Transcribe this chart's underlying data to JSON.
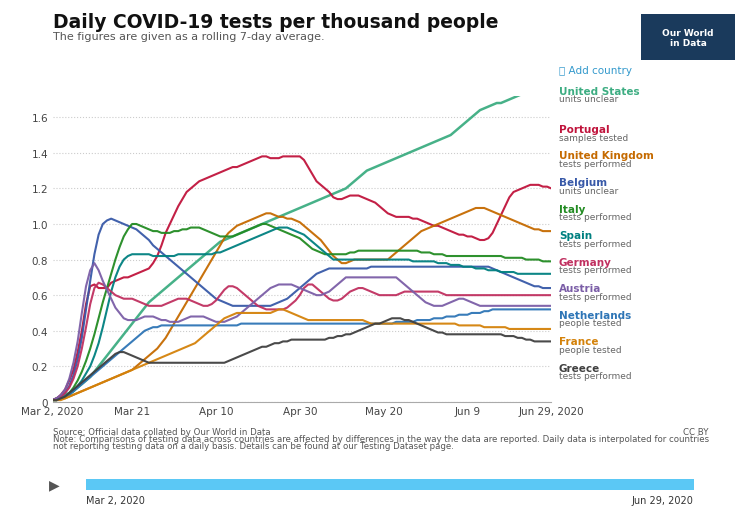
{
  "title": "Daily COVID-19 tests per thousand people",
  "subtitle": "The figures are given as a rolling 7-day average.",
  "owid_box_color": "#1a3a5c",
  "background_color": "#ffffff",
  "source_text1": "Source: Official data collated by Our World in Data",
  "source_text2": "Note: Comparisons of testing data across countries are affected by differences in the way the data are reported. Daily data is interpolated for countries",
  "source_text3": "not reporting testing data on a daily basis. Details can be found at our Testing Dataset page.",
  "cc_text": "CC BY",
  "slider_left": "Mar 2, 2020",
  "slider_right": "Jun 29, 2020",
  "add_country_text": "➕ Add country",
  "xtick_labels": [
    "Mar 2, 2020",
    "Mar 21",
    "Apr 10",
    "Apr 30",
    "May 20",
    "Jun 9",
    "Jun 29, 2020"
  ],
  "xtick_days": [
    0,
    19,
    39,
    59,
    79,
    99,
    119
  ],
  "yticks": [
    0,
    0.2,
    0.4,
    0.6,
    0.8,
    1.0,
    1.2,
    1.4,
    1.6
  ],
  "ylim": [
    0,
    1.72
  ],
  "countries": [
    {
      "name": "United States",
      "note": "units unclear",
      "color": "#3dad82",
      "lw": 1.8
    },
    {
      "name": "Portugal",
      "note": "samples tested",
      "color": "#c0143c",
      "lw": 1.5
    },
    {
      "name": "United Kingdom",
      "note": "tests performed",
      "color": "#c56a00",
      "lw": 1.5
    },
    {
      "name": "Belgium",
      "note": "units unclear",
      "color": "#3859a8",
      "lw": 1.5
    },
    {
      "name": "Italy",
      "note": "tests performed",
      "color": "#228b22",
      "lw": 1.5
    },
    {
      "name": "Spain",
      "note": "tests performed",
      "color": "#008080",
      "lw": 1.5
    },
    {
      "name": "Germany",
      "note": "tests performed",
      "color": "#c03060",
      "lw": 1.5
    },
    {
      "name": "Austria",
      "note": "tests performed",
      "color": "#7b5ea7",
      "lw": 1.5
    },
    {
      "name": "Netherlands",
      "note": "people tested",
      "color": "#2e75b6",
      "lw": 1.5
    },
    {
      "name": "France",
      "note": "people tested",
      "color": "#d4820a",
      "lw": 1.5
    },
    {
      "name": "Greece",
      "note": "tests performed",
      "color": "#404040",
      "lw": 1.5
    }
  ],
  "series": {
    "United States": [
      0.01,
      0.02,
      0.03,
      0.04,
      0.05,
      0.06,
      0.08,
      0.1,
      0.12,
      0.14,
      0.17,
      0.2,
      0.23,
      0.26,
      0.29,
      0.32,
      0.35,
      0.38,
      0.41,
      0.44,
      0.47,
      0.5,
      0.53,
      0.56,
      0.58,
      0.6,
      0.62,
      0.64,
      0.66,
      0.68,
      0.7,
      0.72,
      0.74,
      0.76,
      0.78,
      0.8,
      0.82,
      0.84,
      0.86,
      0.88,
      0.9,
      0.91,
      0.92,
      0.93,
      0.94,
      0.95,
      0.96,
      0.97,
      0.98,
      0.99,
      1.0,
      1.01,
      1.02,
      1.03,
      1.04,
      1.05,
      1.06,
      1.07,
      1.08,
      1.09,
      1.1,
      1.11,
      1.12,
      1.13,
      1.14,
      1.15,
      1.16,
      1.17,
      1.18,
      1.19,
      1.2,
      1.22,
      1.24,
      1.26,
      1.28,
      1.3,
      1.31,
      1.32,
      1.33,
      1.34,
      1.35,
      1.36,
      1.37,
      1.38,
      1.39,
      1.4,
      1.41,
      1.42,
      1.43,
      1.44,
      1.45,
      1.46,
      1.47,
      1.48,
      1.49,
      1.5,
      1.52,
      1.54,
      1.56,
      1.58,
      1.6,
      1.62,
      1.64,
      1.65,
      1.66,
      1.67,
      1.68,
      1.68,
      1.69,
      1.7,
      1.71,
      1.72,
      1.73,
      1.74,
      1.75,
      1.76,
      1.77,
      1.78,
      1.79,
      1.8
    ],
    "Portugal": [
      0.01,
      0.02,
      0.04,
      0.07,
      0.12,
      0.18,
      0.28,
      0.4,
      0.55,
      0.65,
      0.66,
      0.64,
      0.64,
      0.64,
      0.67,
      0.68,
      0.69,
      0.7,
      0.7,
      0.71,
      0.72,
      0.73,
      0.74,
      0.75,
      0.78,
      0.82,
      0.88,
      0.95,
      1.0,
      1.05,
      1.1,
      1.14,
      1.18,
      1.2,
      1.22,
      1.24,
      1.25,
      1.26,
      1.27,
      1.28,
      1.29,
      1.3,
      1.31,
      1.32,
      1.32,
      1.33,
      1.34,
      1.35,
      1.36,
      1.37,
      1.38,
      1.38,
      1.37,
      1.37,
      1.37,
      1.38,
      1.38,
      1.38,
      1.38,
      1.38,
      1.36,
      1.32,
      1.28,
      1.24,
      1.22,
      1.2,
      1.18,
      1.15,
      1.14,
      1.14,
      1.15,
      1.16,
      1.16,
      1.16,
      1.15,
      1.14,
      1.13,
      1.12,
      1.1,
      1.08,
      1.06,
      1.05,
      1.04,
      1.04,
      1.04,
      1.04,
      1.03,
      1.03,
      1.02,
      1.01,
      1.0,
      0.99,
      0.99,
      0.98,
      0.97,
      0.96,
      0.95,
      0.94,
      0.94,
      0.93,
      0.93,
      0.92,
      0.91,
      0.91,
      0.92,
      0.95,
      1.0,
      1.05,
      1.1,
      1.15,
      1.18,
      1.19,
      1.2,
      1.21,
      1.22,
      1.22,
      1.22,
      1.21,
      1.21,
      1.2
    ],
    "United Kingdom": [
      0.01,
      0.01,
      0.02,
      0.02,
      0.03,
      0.04,
      0.05,
      0.06,
      0.07,
      0.08,
      0.09,
      0.1,
      0.11,
      0.12,
      0.13,
      0.14,
      0.15,
      0.16,
      0.17,
      0.18,
      0.2,
      0.22,
      0.24,
      0.26,
      0.28,
      0.3,
      0.33,
      0.36,
      0.4,
      0.44,
      0.48,
      0.52,
      0.56,
      0.6,
      0.64,
      0.68,
      0.72,
      0.76,
      0.8,
      0.84,
      0.88,
      0.92,
      0.95,
      0.97,
      0.99,
      1.0,
      1.01,
      1.02,
      1.03,
      1.04,
      1.05,
      1.06,
      1.06,
      1.05,
      1.04,
      1.04,
      1.03,
      1.03,
      1.02,
      1.01,
      0.99,
      0.97,
      0.95,
      0.93,
      0.91,
      0.88,
      0.85,
      0.82,
      0.8,
      0.78,
      0.78,
      0.79,
      0.8,
      0.8,
      0.8,
      0.8,
      0.8,
      0.8,
      0.8,
      0.8,
      0.8,
      0.82,
      0.84,
      0.86,
      0.88,
      0.9,
      0.92,
      0.94,
      0.96,
      0.97,
      0.98,
      0.99,
      1.0,
      1.01,
      1.02,
      1.03,
      1.04,
      1.05,
      1.06,
      1.07,
      1.08,
      1.09,
      1.09,
      1.09,
      1.08,
      1.07,
      1.06,
      1.05,
      1.04,
      1.03,
      1.02,
      1.01,
      1.0,
      0.99,
      0.98,
      0.97,
      0.97,
      0.96,
      0.96,
      0.96
    ],
    "Belgium": [
      0.01,
      0.02,
      0.03,
      0.05,
      0.09,
      0.15,
      0.24,
      0.36,
      0.52,
      0.68,
      0.83,
      0.94,
      1.0,
      1.02,
      1.03,
      1.02,
      1.01,
      1.0,
      0.99,
      0.98,
      0.97,
      0.95,
      0.93,
      0.91,
      0.88,
      0.86,
      0.84,
      0.82,
      0.8,
      0.78,
      0.76,
      0.74,
      0.72,
      0.7,
      0.68,
      0.66,
      0.64,
      0.62,
      0.6,
      0.58,
      0.57,
      0.56,
      0.55,
      0.54,
      0.54,
      0.54,
      0.54,
      0.54,
      0.54,
      0.54,
      0.54,
      0.54,
      0.54,
      0.55,
      0.56,
      0.57,
      0.58,
      0.6,
      0.62,
      0.64,
      0.66,
      0.68,
      0.7,
      0.72,
      0.73,
      0.74,
      0.75,
      0.75,
      0.75,
      0.75,
      0.75,
      0.75,
      0.75,
      0.75,
      0.75,
      0.75,
      0.76,
      0.76,
      0.76,
      0.76,
      0.76,
      0.76,
      0.76,
      0.76,
      0.76,
      0.76,
      0.76,
      0.76,
      0.76,
      0.76,
      0.76,
      0.76,
      0.76,
      0.76,
      0.76,
      0.76,
      0.76,
      0.76,
      0.76,
      0.76,
      0.76,
      0.76,
      0.76,
      0.76,
      0.76,
      0.75,
      0.74,
      0.73,
      0.72,
      0.71,
      0.7,
      0.69,
      0.68,
      0.67,
      0.66,
      0.65,
      0.65,
      0.64,
      0.64,
      0.64
    ],
    "Italy": [
      0.01,
      0.01,
      0.02,
      0.03,
      0.05,
      0.08,
      0.12,
      0.17,
      0.23,
      0.3,
      0.38,
      0.47,
      0.56,
      0.64,
      0.72,
      0.8,
      0.87,
      0.93,
      0.97,
      1.0,
      1.0,
      0.99,
      0.98,
      0.97,
      0.96,
      0.96,
      0.95,
      0.95,
      0.95,
      0.96,
      0.96,
      0.97,
      0.97,
      0.98,
      0.98,
      0.98,
      0.97,
      0.96,
      0.95,
      0.94,
      0.93,
      0.93,
      0.93,
      0.93,
      0.94,
      0.95,
      0.96,
      0.97,
      0.98,
      0.99,
      1.0,
      1.0,
      0.99,
      0.98,
      0.97,
      0.96,
      0.95,
      0.94,
      0.93,
      0.92,
      0.9,
      0.88,
      0.86,
      0.85,
      0.84,
      0.83,
      0.83,
      0.83,
      0.83,
      0.83,
      0.83,
      0.84,
      0.84,
      0.85,
      0.85,
      0.85,
      0.85,
      0.85,
      0.85,
      0.85,
      0.85,
      0.85,
      0.85,
      0.85,
      0.85,
      0.85,
      0.85,
      0.85,
      0.84,
      0.84,
      0.84,
      0.83,
      0.83,
      0.83,
      0.82,
      0.82,
      0.82,
      0.82,
      0.82,
      0.82,
      0.82,
      0.82,
      0.82,
      0.82,
      0.82,
      0.82,
      0.82,
      0.82,
      0.81,
      0.81,
      0.81,
      0.81,
      0.81,
      0.8,
      0.8,
      0.8,
      0.8,
      0.79,
      0.79,
      0.79
    ],
    "Spain": [
      0.01,
      0.01,
      0.02,
      0.03,
      0.04,
      0.06,
      0.09,
      0.12,
      0.16,
      0.2,
      0.26,
      0.33,
      0.42,
      0.52,
      0.62,
      0.7,
      0.76,
      0.8,
      0.82,
      0.83,
      0.83,
      0.83,
      0.83,
      0.83,
      0.82,
      0.82,
      0.82,
      0.82,
      0.82,
      0.82,
      0.83,
      0.83,
      0.83,
      0.83,
      0.83,
      0.83,
      0.83,
      0.83,
      0.83,
      0.84,
      0.84,
      0.85,
      0.86,
      0.87,
      0.88,
      0.89,
      0.9,
      0.91,
      0.92,
      0.93,
      0.94,
      0.95,
      0.96,
      0.97,
      0.98,
      0.98,
      0.98,
      0.97,
      0.96,
      0.95,
      0.94,
      0.92,
      0.9,
      0.88,
      0.86,
      0.84,
      0.82,
      0.8,
      0.8,
      0.8,
      0.8,
      0.8,
      0.8,
      0.8,
      0.8,
      0.8,
      0.8,
      0.8,
      0.8,
      0.8,
      0.8,
      0.8,
      0.8,
      0.8,
      0.8,
      0.8,
      0.79,
      0.79,
      0.79,
      0.79,
      0.79,
      0.79,
      0.78,
      0.78,
      0.78,
      0.77,
      0.77,
      0.77,
      0.76,
      0.76,
      0.76,
      0.75,
      0.75,
      0.75,
      0.74,
      0.74,
      0.74,
      0.73,
      0.73,
      0.73,
      0.73,
      0.72,
      0.72,
      0.72,
      0.72,
      0.72,
      0.72,
      0.72,
      0.72,
      0.72
    ],
    "Germany": [
      0.01,
      0.02,
      0.03,
      0.05,
      0.08,
      0.13,
      0.2,
      0.3,
      0.42,
      0.55,
      0.64,
      0.67,
      0.66,
      0.64,
      0.62,
      0.6,
      0.59,
      0.58,
      0.58,
      0.58,
      0.57,
      0.56,
      0.55,
      0.54,
      0.54,
      0.54,
      0.54,
      0.55,
      0.56,
      0.57,
      0.58,
      0.58,
      0.58,
      0.57,
      0.56,
      0.55,
      0.54,
      0.54,
      0.55,
      0.57,
      0.6,
      0.63,
      0.65,
      0.65,
      0.64,
      0.62,
      0.6,
      0.58,
      0.56,
      0.54,
      0.53,
      0.52,
      0.52,
      0.52,
      0.52,
      0.52,
      0.53,
      0.55,
      0.57,
      0.6,
      0.64,
      0.66,
      0.66,
      0.64,
      0.62,
      0.6,
      0.58,
      0.57,
      0.57,
      0.58,
      0.6,
      0.62,
      0.63,
      0.64,
      0.64,
      0.63,
      0.62,
      0.61,
      0.6,
      0.6,
      0.6,
      0.6,
      0.6,
      0.61,
      0.62,
      0.62,
      0.62,
      0.62,
      0.62,
      0.62,
      0.62,
      0.62,
      0.62,
      0.61,
      0.6,
      0.6,
      0.6,
      0.6,
      0.6,
      0.6,
      0.6,
      0.6,
      0.6,
      0.6,
      0.6,
      0.6,
      0.6,
      0.6,
      0.6,
      0.6,
      0.6,
      0.6,
      0.6,
      0.6,
      0.6,
      0.6,
      0.6,
      0.6,
      0.6,
      0.6
    ],
    "Austria": [
      0.01,
      0.02,
      0.04,
      0.07,
      0.13,
      0.22,
      0.34,
      0.5,
      0.65,
      0.74,
      0.78,
      0.74,
      0.68,
      0.63,
      0.58,
      0.53,
      0.5,
      0.47,
      0.46,
      0.46,
      0.46,
      0.47,
      0.48,
      0.48,
      0.48,
      0.47,
      0.46,
      0.46,
      0.45,
      0.45,
      0.45,
      0.46,
      0.47,
      0.48,
      0.48,
      0.48,
      0.48,
      0.47,
      0.46,
      0.45,
      0.45,
      0.45,
      0.46,
      0.47,
      0.48,
      0.5,
      0.52,
      0.54,
      0.56,
      0.58,
      0.6,
      0.62,
      0.64,
      0.65,
      0.66,
      0.66,
      0.66,
      0.66,
      0.65,
      0.64,
      0.63,
      0.62,
      0.61,
      0.6,
      0.6,
      0.61,
      0.62,
      0.64,
      0.66,
      0.68,
      0.7,
      0.7,
      0.7,
      0.7,
      0.7,
      0.7,
      0.7,
      0.7,
      0.7,
      0.7,
      0.7,
      0.7,
      0.7,
      0.68,
      0.66,
      0.64,
      0.62,
      0.6,
      0.58,
      0.56,
      0.55,
      0.54,
      0.54,
      0.54,
      0.55,
      0.56,
      0.57,
      0.58,
      0.58,
      0.57,
      0.56,
      0.55,
      0.54,
      0.54,
      0.54,
      0.54,
      0.54,
      0.54,
      0.54,
      0.54,
      0.54,
      0.54,
      0.54,
      0.54,
      0.54,
      0.54,
      0.54,
      0.54,
      0.54,
      0.54
    ],
    "Netherlands": [
      0.01,
      0.01,
      0.02,
      0.03,
      0.04,
      0.06,
      0.08,
      0.1,
      0.12,
      0.14,
      0.16,
      0.18,
      0.2,
      0.22,
      0.24,
      0.26,
      0.28,
      0.3,
      0.32,
      0.34,
      0.36,
      0.38,
      0.4,
      0.41,
      0.42,
      0.42,
      0.43,
      0.43,
      0.43,
      0.43,
      0.43,
      0.43,
      0.43,
      0.43,
      0.43,
      0.43,
      0.43,
      0.43,
      0.43,
      0.43,
      0.43,
      0.43,
      0.43,
      0.43,
      0.43,
      0.44,
      0.44,
      0.44,
      0.44,
      0.44,
      0.44,
      0.44,
      0.44,
      0.44,
      0.44,
      0.44,
      0.44,
      0.44,
      0.44,
      0.44,
      0.44,
      0.44,
      0.44,
      0.44,
      0.44,
      0.44,
      0.44,
      0.44,
      0.44,
      0.44,
      0.44,
      0.44,
      0.44,
      0.44,
      0.44,
      0.44,
      0.44,
      0.44,
      0.44,
      0.44,
      0.44,
      0.44,
      0.45,
      0.45,
      0.45,
      0.45,
      0.45,
      0.46,
      0.46,
      0.46,
      0.46,
      0.47,
      0.47,
      0.47,
      0.48,
      0.48,
      0.48,
      0.49,
      0.49,
      0.49,
      0.5,
      0.5,
      0.5,
      0.51,
      0.51,
      0.52,
      0.52,
      0.52,
      0.52,
      0.52,
      0.52,
      0.52,
      0.52,
      0.52,
      0.52,
      0.52,
      0.52,
      0.52,
      0.52,
      0.52
    ],
    "France": [
      0.01,
      0.01,
      0.01,
      0.02,
      0.03,
      0.04,
      0.05,
      0.06,
      0.07,
      0.08,
      0.09,
      0.1,
      0.11,
      0.12,
      0.13,
      0.14,
      0.15,
      0.16,
      0.17,
      0.18,
      0.19,
      0.2,
      0.21,
      0.22,
      0.23,
      0.24,
      0.25,
      0.26,
      0.27,
      0.28,
      0.29,
      0.3,
      0.31,
      0.32,
      0.33,
      0.35,
      0.37,
      0.39,
      0.41,
      0.43,
      0.45,
      0.47,
      0.48,
      0.49,
      0.5,
      0.5,
      0.5,
      0.5,
      0.5,
      0.5,
      0.5,
      0.5,
      0.5,
      0.51,
      0.52,
      0.52,
      0.51,
      0.5,
      0.49,
      0.48,
      0.47,
      0.46,
      0.46,
      0.46,
      0.46,
      0.46,
      0.46,
      0.46,
      0.46,
      0.46,
      0.46,
      0.46,
      0.46,
      0.46,
      0.46,
      0.45,
      0.44,
      0.44,
      0.44,
      0.44,
      0.44,
      0.44,
      0.44,
      0.44,
      0.44,
      0.44,
      0.44,
      0.44,
      0.44,
      0.44,
      0.44,
      0.44,
      0.44,
      0.44,
      0.44,
      0.44,
      0.44,
      0.43,
      0.43,
      0.43,
      0.43,
      0.43,
      0.43,
      0.42,
      0.42,
      0.42,
      0.42,
      0.42,
      0.42,
      0.41,
      0.41,
      0.41,
      0.41,
      0.41,
      0.41,
      0.41,
      0.41,
      0.41,
      0.41,
      0.41
    ],
    "Greece": [
      0.01,
      0.01,
      0.02,
      0.03,
      0.05,
      0.07,
      0.09,
      0.11,
      0.13,
      0.15,
      0.17,
      0.19,
      0.21,
      0.23,
      0.25,
      0.27,
      0.28,
      0.28,
      0.27,
      0.26,
      0.25,
      0.24,
      0.23,
      0.22,
      0.22,
      0.22,
      0.22,
      0.22,
      0.22,
      0.22,
      0.22,
      0.22,
      0.22,
      0.22,
      0.22,
      0.22,
      0.22,
      0.22,
      0.22,
      0.22,
      0.22,
      0.22,
      0.23,
      0.24,
      0.25,
      0.26,
      0.27,
      0.28,
      0.29,
      0.3,
      0.31,
      0.31,
      0.32,
      0.33,
      0.33,
      0.34,
      0.34,
      0.35,
      0.35,
      0.35,
      0.35,
      0.35,
      0.35,
      0.35,
      0.35,
      0.35,
      0.36,
      0.36,
      0.37,
      0.37,
      0.38,
      0.38,
      0.39,
      0.4,
      0.41,
      0.42,
      0.43,
      0.44,
      0.44,
      0.45,
      0.46,
      0.47,
      0.47,
      0.47,
      0.46,
      0.46,
      0.45,
      0.44,
      0.43,
      0.42,
      0.41,
      0.4,
      0.39,
      0.39,
      0.38,
      0.38,
      0.38,
      0.38,
      0.38,
      0.38,
      0.38,
      0.38,
      0.38,
      0.38,
      0.38,
      0.38,
      0.38,
      0.38,
      0.37,
      0.37,
      0.37,
      0.36,
      0.36,
      0.35,
      0.35,
      0.34,
      0.34,
      0.34,
      0.34,
      0.34
    ]
  }
}
